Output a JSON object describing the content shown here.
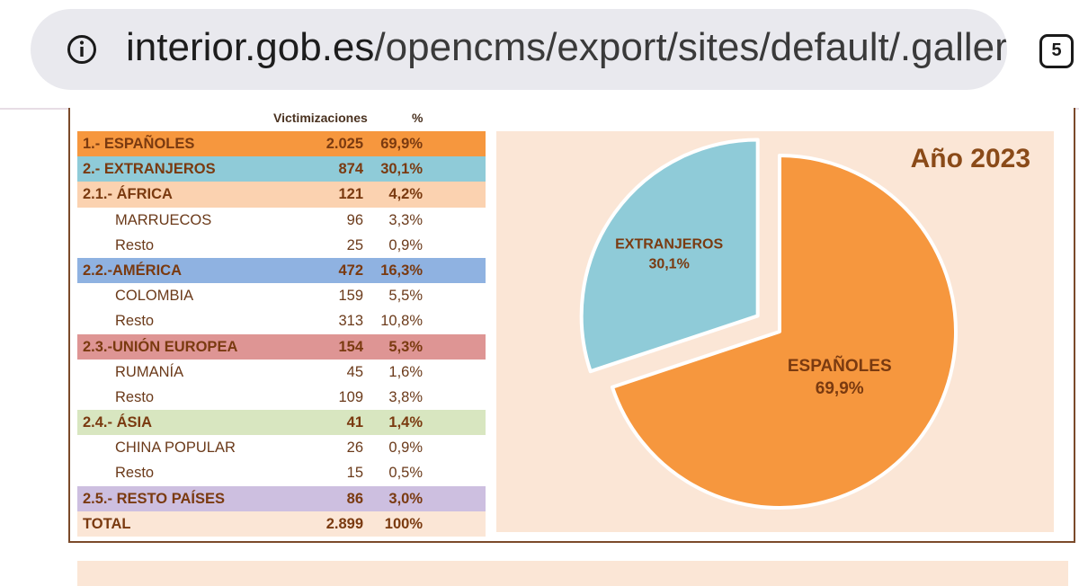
{
  "browser": {
    "url_host": "interior.gob.es",
    "url_path": "/opencms/export/sites/default/.galleries",
    "tab_count": "5",
    "icons": {
      "site_info": "info-circle-icon"
    }
  },
  "table": {
    "header_victimizations": "Victimizaciones",
    "header_percent": "%",
    "rows": [
      {
        "label": "1.- ESPAÑOLES",
        "value": "2.025",
        "percent": "69,9%",
        "level": "top",
        "bg": "#f6973e"
      },
      {
        "label": "2.- EXTRANJEROS",
        "value": "874",
        "percent": "30,1%",
        "level": "top",
        "bg": "#8fcbd8"
      },
      {
        "label": "2.1.- ÁFRICA",
        "value": "121",
        "percent": "4,2%",
        "level": "group",
        "bg": "#fbd2b0"
      },
      {
        "label": "MARRUECOS",
        "value": "96",
        "percent": "3,3%",
        "level": "sub",
        "bg": ""
      },
      {
        "label": "Resto",
        "value": "25",
        "percent": "0,9%",
        "level": "rest",
        "bg": ""
      },
      {
        "label": "2.2.-AMÉRICA",
        "value": "472",
        "percent": "16,3%",
        "level": "group",
        "bg": "#8fb2e1"
      },
      {
        "label": "COLOMBIA",
        "value": "159",
        "percent": "5,5%",
        "level": "sub",
        "bg": ""
      },
      {
        "label": "Resto",
        "value": "313",
        "percent": "10,8%",
        "level": "rest",
        "bg": ""
      },
      {
        "label": "2.3.-UNIÓN EUROPEA",
        "value": "154",
        "percent": "5,3%",
        "level": "group",
        "bg": "#de9594"
      },
      {
        "label": "RUMANÍA",
        "value": "45",
        "percent": "1,6%",
        "level": "sub",
        "bg": ""
      },
      {
        "label": "Resto",
        "value": "109",
        "percent": "3,8%",
        "level": "rest",
        "bg": ""
      },
      {
        "label": "2.4.- ÁSIA",
        "value": "41",
        "percent": "1,4%",
        "level": "group",
        "bg": "#d8e6c0"
      },
      {
        "label": "CHINA POPULAR",
        "value": "26",
        "percent": "0,9%",
        "level": "sub",
        "bg": ""
      },
      {
        "label": "Resto",
        "value": "15",
        "percent": "0,5%",
        "level": "rest",
        "bg": ""
      },
      {
        "label": "2.5.- RESTO PAÍSES",
        "value": "86",
        "percent": "3,0%",
        "level": "group",
        "bg": "#cdbfe0"
      },
      {
        "label": "TOTAL",
        "value": "2.899",
        "percent": "100%",
        "level": "total",
        "bg": "#fbe6d6"
      }
    ]
  },
  "chart_data": {
    "type": "pie",
    "title": "Año 2023",
    "slices": [
      {
        "name": "ESPAÑOLES",
        "value": 69.9,
        "label": "69,9%",
        "color": "#f6973e"
      },
      {
        "name": "EXTRANJEROS",
        "value": 30.1,
        "label": "30,1%",
        "color": "#8fcbd8",
        "exploded": true
      }
    ],
    "background": "#fbe6d6",
    "label_color": "#7a3a10"
  }
}
